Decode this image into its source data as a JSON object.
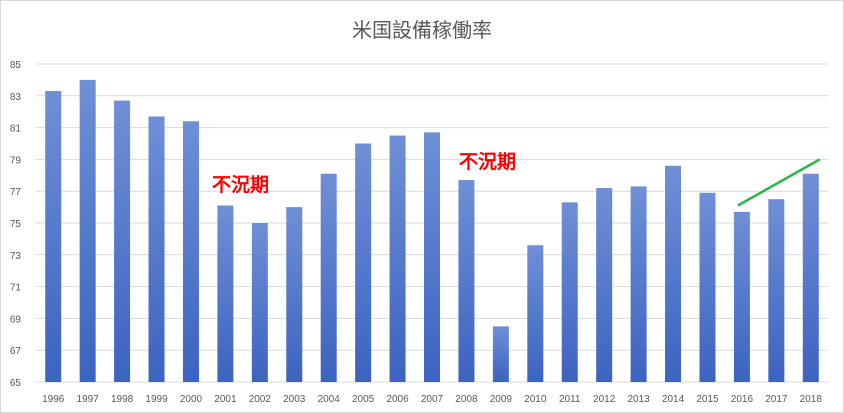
{
  "chart_data": {
    "type": "bar",
    "title": "米国設備稼働率",
    "xlabel": "",
    "ylabel": "",
    "categories": [
      "1996",
      "1997",
      "1998",
      "1999",
      "2000",
      "2001",
      "2002",
      "2003",
      "2004",
      "2005",
      "2006",
      "2007",
      "2008",
      "2009",
      "2010",
      "2011",
      "2012",
      "2013",
      "2014",
      "2015",
      "2016",
      "2017",
      "2018"
    ],
    "values": [
      83.3,
      84.0,
      82.7,
      81.7,
      81.4,
      76.1,
      75.0,
      76.0,
      78.1,
      80.0,
      80.5,
      80.7,
      77.7,
      68.5,
      73.6,
      76.3,
      77.2,
      77.3,
      78.6,
      76.9,
      75.7,
      76.5,
      78.1
    ],
    "ylim": [
      65,
      85
    ],
    "yticks": [
      "65",
      "67",
      "69",
      "71",
      "73",
      "75",
      "77",
      "79",
      "81",
      "83",
      "85"
    ],
    "grid": true,
    "legend": "none",
    "colors": {
      "bar_top": "#6f8fd6",
      "bar_bottom": "#3c63c0",
      "grid": "#d9d9d9",
      "trend": "#2db34a",
      "annotation": "#ff0000"
    },
    "annotations": [
      {
        "text": "不況期"
      },
      {
        "text": "不況期"
      }
    ],
    "trend_line": {
      "from": [
        "2016",
        76.1
      ],
      "to": [
        "2018",
        79.0
      ]
    }
  }
}
